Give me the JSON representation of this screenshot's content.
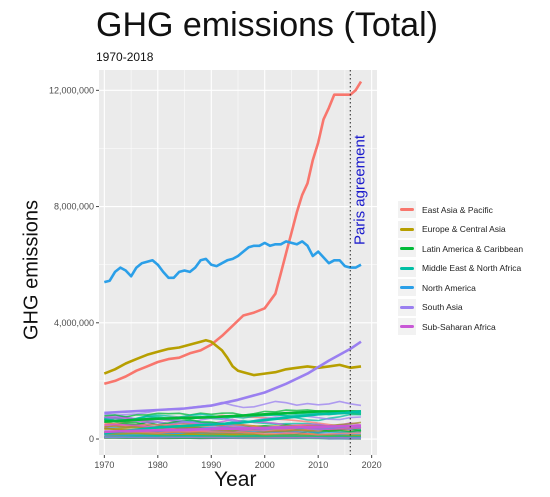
{
  "chart_data": {
    "type": "line",
    "title": "GHG emissions (Total)",
    "subtitle": "1970-2018",
    "xlabel": "Year",
    "ylabel": "GHG emissions",
    "xlim": [
      1969,
      2021
    ],
    "ylim": [
      -550000,
      12700000
    ],
    "x_ticks": [
      1970,
      1980,
      1990,
      2000,
      2010,
      2020
    ],
    "y_ticks": [
      0,
      4000000,
      8000000,
      12000000
    ],
    "y_tick_labels": [
      "0",
      "4,000,000",
      "8,000,000",
      "12,000,000"
    ],
    "grid": true,
    "legend_position": "right",
    "annotation": {
      "text": "Paris agreement",
      "x": 2016,
      "color": "#1a1acc"
    },
    "series": [
      {
        "name": "East Asia & Pacific",
        "color": "#f8766d",
        "x": [
          1970,
          1972,
          1974,
          1976,
          1978,
          1980,
          1982,
          1984,
          1986,
          1988,
          1990,
          1992,
          1994,
          1996,
          1998,
          2000,
          2002,
          2003,
          2004,
          2005,
          2006,
          2007,
          2008,
          2009,
          2010,
          2011,
          2012,
          2013,
          2014,
          2015,
          2016,
          2017,
          2018
        ],
        "y": [
          1900000,
          2000000,
          2150000,
          2350000,
          2500000,
          2650000,
          2750000,
          2800000,
          2950000,
          3050000,
          3250000,
          3550000,
          3900000,
          4250000,
          4350000,
          4500000,
          5000000,
          5700000,
          6400000,
          7100000,
          7800000,
          8400000,
          8800000,
          9600000,
          10200000,
          11000000,
          11400000,
          11850000,
          11850000,
          11850000,
          11850000,
          12000000,
          12300000
        ]
      },
      {
        "name": "Europe & Central Asia",
        "color": "#b79f00",
        "x": [
          1970,
          1972,
          1974,
          1976,
          1978,
          1980,
          1982,
          1984,
          1986,
          1988,
          1989,
          1990,
          1991,
          1992,
          1993,
          1994,
          1995,
          1996,
          1998,
          2000,
          2002,
          2004,
          2006,
          2008,
          2010,
          2012,
          2014,
          2016,
          2018
        ],
        "y": [
          2250000,
          2400000,
          2600000,
          2750000,
          2900000,
          3000000,
          3100000,
          3150000,
          3250000,
          3350000,
          3400000,
          3350000,
          3200000,
          3050000,
          2800000,
          2500000,
          2350000,
          2300000,
          2200000,
          2250000,
          2300000,
          2400000,
          2450000,
          2500000,
          2450000,
          2500000,
          2550000,
          2450000,
          2500000
        ]
      },
      {
        "name": "Latin America & Caribbean",
        "color": "#00ba38",
        "x": [
          1970,
          1975,
          1980,
          1985,
          1990,
          1995,
          2000,
          2005,
          2010,
          2015,
          2018
        ],
        "y": [
          600000,
          650000,
          700000,
          720000,
          750000,
          800000,
          850000,
          900000,
          950000,
          950000,
          950000
        ]
      },
      {
        "name": "Middle East & North Africa",
        "color": "#00bfa4",
        "x": [
          1970,
          1975,
          1980,
          1985,
          1990,
          1995,
          2000,
          2005,
          2010,
          2015,
          2018
        ],
        "y": [
          200000,
          300000,
          400000,
          450000,
          500000,
          550000,
          650000,
          750000,
          850000,
          900000,
          950000
        ]
      },
      {
        "name": "North America",
        "color": "#2b9fe8",
        "x": [
          1970,
          1971,
          1972,
          1973,
          1974,
          1975,
          1976,
          1977,
          1978,
          1979,
          1980,
          1981,
          1982,
          1983,
          1984,
          1985,
          1986,
          1987,
          1988,
          1989,
          1990,
          1991,
          1992,
          1993,
          1994,
          1995,
          1996,
          1997,
          1998,
          1999,
          2000,
          2001,
          2002,
          2003,
          2004,
          2005,
          2006,
          2007,
          2008,
          2009,
          2010,
          2011,
          2012,
          2013,
          2014,
          2015,
          2016,
          2017,
          2018
        ],
        "y": [
          5400000,
          5450000,
          5750000,
          5900000,
          5800000,
          5600000,
          5900000,
          6050000,
          6100000,
          6150000,
          6000000,
          5750000,
          5550000,
          5550000,
          5750000,
          5800000,
          5750000,
          5900000,
          6150000,
          6200000,
          6000000,
          5950000,
          6050000,
          6150000,
          6200000,
          6300000,
          6450000,
          6600000,
          6650000,
          6650000,
          6750000,
          6650000,
          6700000,
          6700000,
          6800000,
          6750000,
          6700000,
          6800000,
          6650000,
          6300000,
          6450000,
          6250000,
          6050000,
          6150000,
          6150000,
          5950000,
          5900000,
          5900000,
          6000000
        ]
      },
      {
        "name": "South Asia",
        "color": "#9a7ff0",
        "x": [
          1970,
          1975,
          1980,
          1985,
          1990,
          1995,
          2000,
          2004,
          2008,
          2012,
          2016,
          2018
        ],
        "y": [
          900000,
          950000,
          1000000,
          1050000,
          1150000,
          1350000,
          1600000,
          1900000,
          2250000,
          2700000,
          3100000,
          3350000
        ]
      },
      {
        "name": "Sub-Saharan Africa",
        "color": "#c858d6",
        "x": [
          1970,
          1975,
          1980,
          1985,
          1990,
          1995,
          2000,
          2005,
          2010,
          2015,
          2018
        ],
        "y": [
          250000,
          280000,
          300000,
          320000,
          340000,
          360000,
          380000,
          400000,
          420000,
          440000,
          450000
        ]
      }
    ]
  }
}
